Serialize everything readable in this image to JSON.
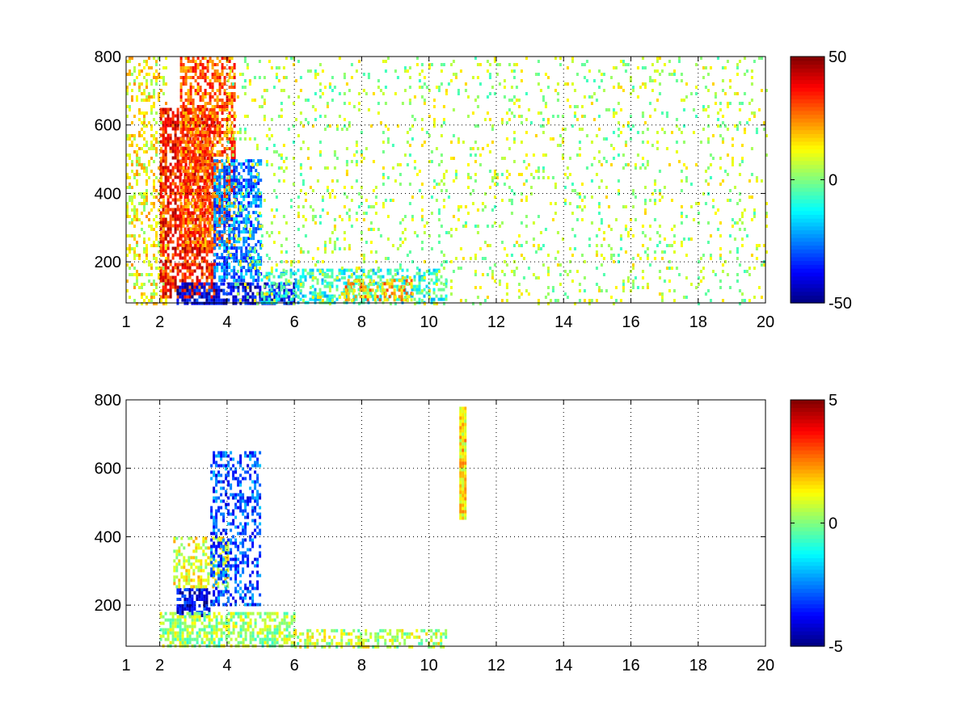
{
  "chart_data": [
    {
      "type": "heatmap",
      "x": {
        "ticks": [
          1,
          2,
          4,
          6,
          8,
          10,
          12,
          14,
          16,
          18,
          20
        ],
        "tick_labels": [
          "1",
          "2",
          "4",
          "6",
          "8",
          "10",
          "12",
          "14",
          "16",
          "18",
          "20"
        ],
        "range": [
          1,
          20
        ]
      },
      "y": {
        "ticks": [
          200,
          400,
          600,
          800
        ],
        "tick_labels": [
          "200",
          "400",
          "600",
          "800"
        ],
        "range": [
          80,
          800
        ]
      },
      "grid": true,
      "colorbar": {
        "colormap": "jet",
        "range": [
          -50,
          50
        ],
        "tick_values": [
          -50,
          0,
          50
        ],
        "tick_labels": [
          "-50",
          "0",
          "50"
        ]
      },
      "features": [
        {
          "x_range": [
            1,
            2.2
          ],
          "y_range": [
            80,
            800
          ],
          "value": 12,
          "density": 0.35
        },
        {
          "x_range": [
            2,
            3.6
          ],
          "y_range": [
            100,
            650
          ],
          "value": 35,
          "density": 0.7
        },
        {
          "x_range": [
            2.6,
            4.2
          ],
          "y_range": [
            250,
            800
          ],
          "value": 28,
          "density": 0.6
        },
        {
          "x_range": [
            3.6,
            5
          ],
          "y_range": [
            150,
            500
          ],
          "value": -25,
          "density": 0.6
        },
        {
          "x_range": [
            2.5,
            6
          ],
          "y_range": [
            80,
            140
          ],
          "value": -40,
          "density": 0.7
        },
        {
          "x_range": [
            5,
            10.5
          ],
          "y_range": [
            80,
            180
          ],
          "value": -10,
          "density": 0.45
        },
        {
          "x_range": [
            7.5,
            9.5
          ],
          "y_range": [
            90,
            150
          ],
          "value": 20,
          "density": 0.5
        },
        {
          "x_range": [
            4,
            20
          ],
          "y_range": [
            80,
            800
          ],
          "value": 5,
          "density": 0.1
        }
      ]
    },
    {
      "type": "heatmap",
      "x": {
        "ticks": [
          1,
          2,
          4,
          6,
          8,
          10,
          12,
          14,
          16,
          18,
          20
        ],
        "tick_labels": [
          "1",
          "2",
          "4",
          "6",
          "8",
          "10",
          "12",
          "14",
          "16",
          "18",
          "20"
        ],
        "range": [
          1,
          20
        ]
      },
      "y": {
        "ticks": [
          200,
          400,
          600,
          800
        ],
        "tick_labels": [
          "200",
          "400",
          "600",
          "800"
        ],
        "range": [
          80,
          800
        ]
      },
      "grid": true,
      "colorbar": {
        "colormap": "jet",
        "range": [
          -5,
          5
        ],
        "tick_values": [
          -5,
          0,
          5
        ],
        "tick_labels": [
          "-5",
          "0",
          "5"
        ]
      },
      "features": [
        {
          "x_range": [
            2.5,
            3.5
          ],
          "y_range": [
            170,
            250
          ],
          "value": -4,
          "density": 0.7
        },
        {
          "x_range": [
            2.4,
            4
          ],
          "y_range": [
            250,
            400
          ],
          "value": 1,
          "density": 0.5
        },
        {
          "x_range": [
            3.5,
            5
          ],
          "y_range": [
            200,
            650
          ],
          "value": -3,
          "density": 0.45
        },
        {
          "x_range": [
            2,
            6
          ],
          "y_range": [
            80,
            180
          ],
          "value": 0.3,
          "density": 0.6
        },
        {
          "x_range": [
            6,
            10.5
          ],
          "y_range": [
            80,
            130
          ],
          "value": 0.6,
          "density": 0.45
        },
        {
          "x_range": [
            10.9,
            11.1
          ],
          "y_range": [
            450,
            780
          ],
          "value": 1.5,
          "density": 1
        }
      ]
    }
  ]
}
